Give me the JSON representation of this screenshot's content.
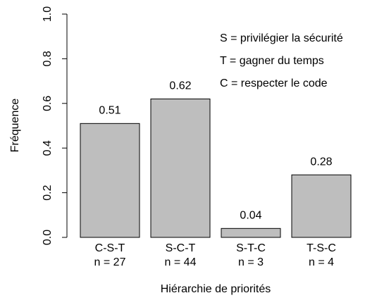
{
  "chart_data": {
    "type": "bar",
    "categories": [
      "C-S-T",
      "S-C-T",
      "S-T-C",
      "T-S-C"
    ],
    "sample_sizes": [
      "n = 27",
      "n = 44",
      "n = 3",
      "n = 4"
    ],
    "values": [
      0.51,
      0.62,
      0.04,
      0.28
    ],
    "color": "#bebebe",
    "ylim": [
      0,
      1
    ],
    "yticks": [
      {
        "value": 0,
        "label": "0.0"
      },
      0.2,
      0.4,
      0.6,
      0.8,
      {
        "value": 1,
        "label": "1.0"
      }
    ],
    "y_label": "Fréquence",
    "x_label": "Hiérarchie de priorités",
    "annotations": [
      "S = privilégier la sécurité",
      "T = gagner du temps",
      "C = respecter le code"
    ]
  }
}
